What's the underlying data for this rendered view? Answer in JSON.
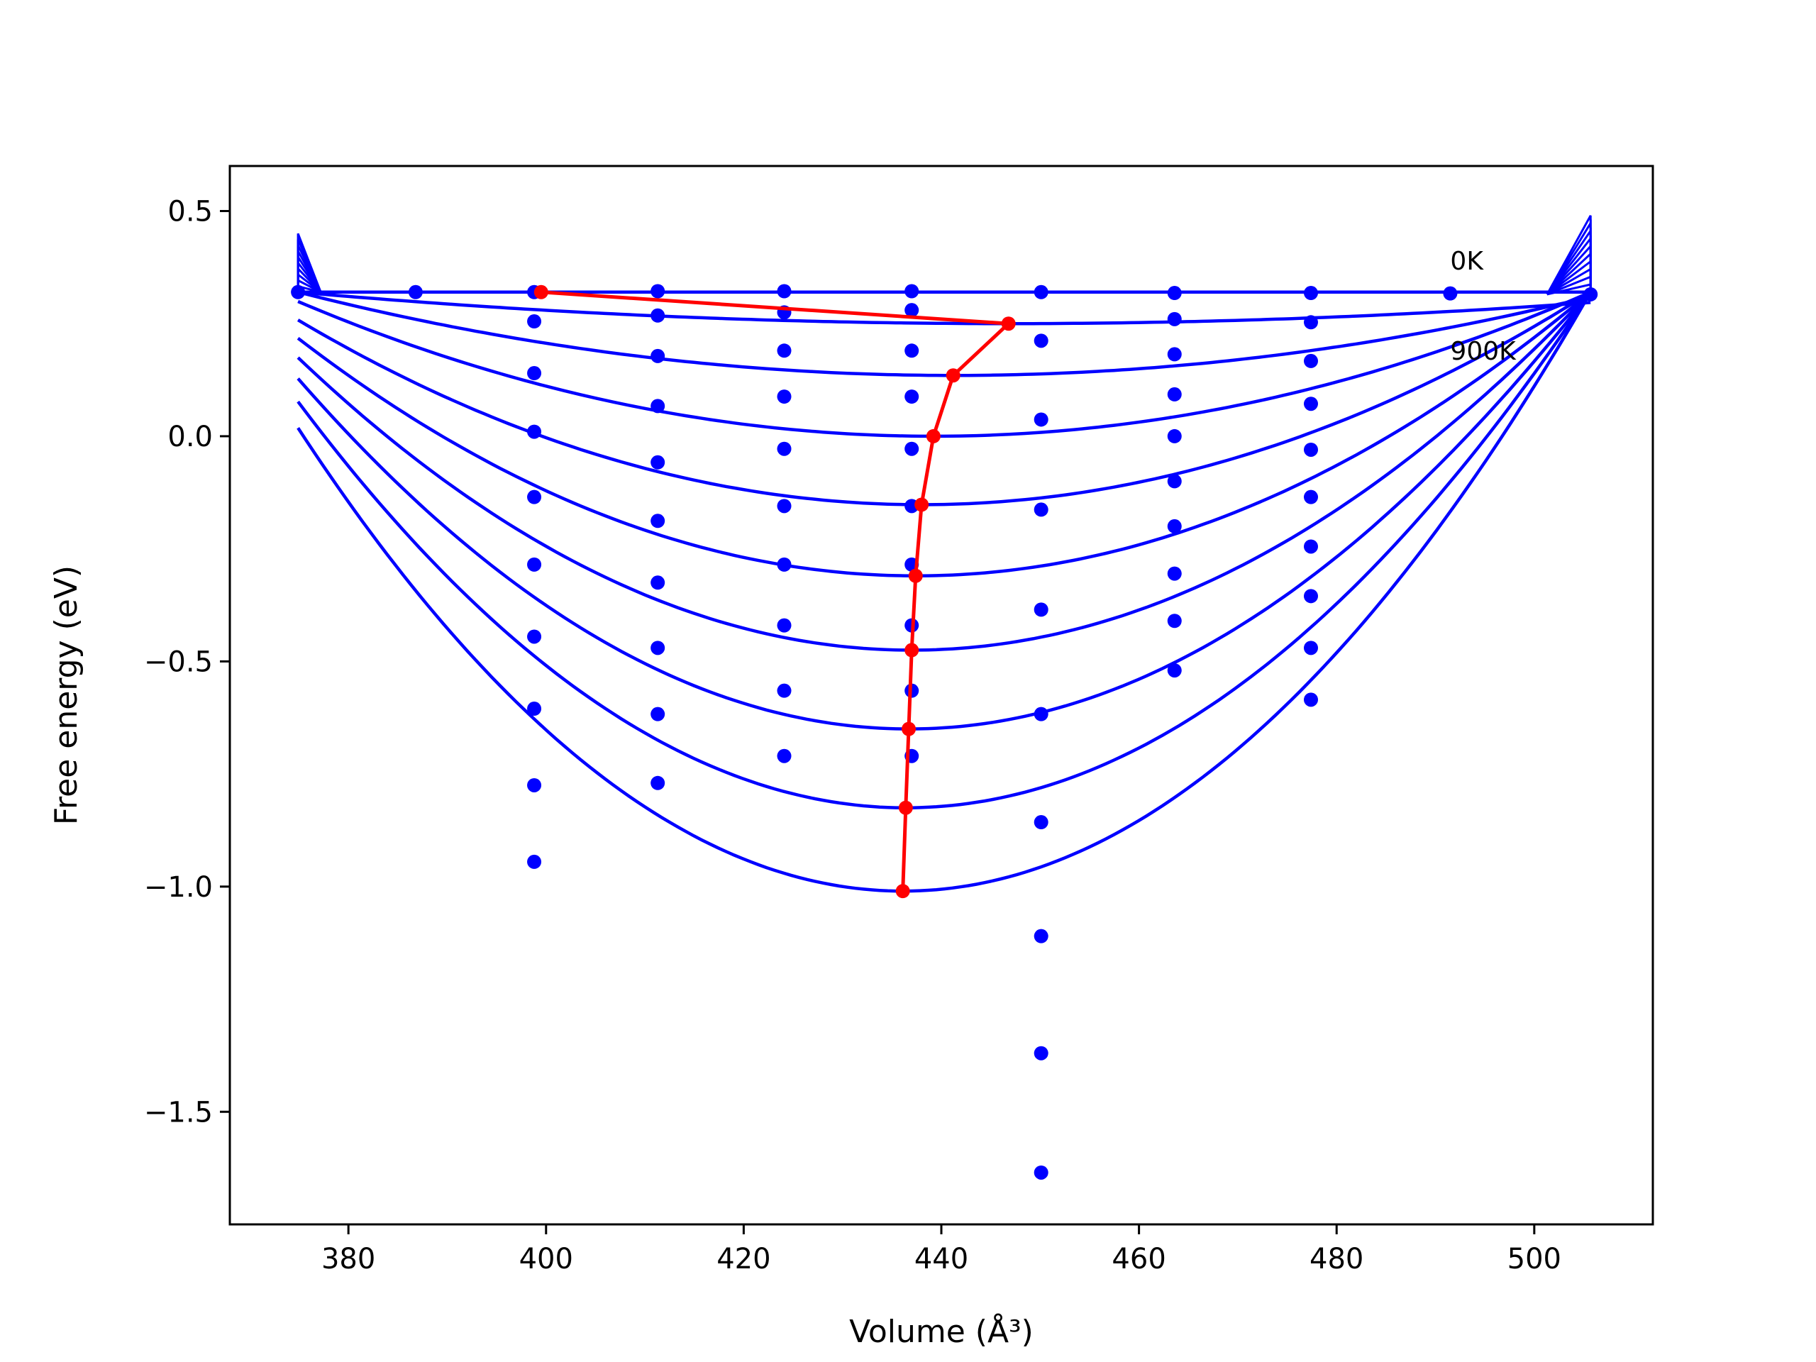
{
  "chart_data": {
    "type": "line",
    "xlabel": "Volume (Å³)",
    "ylabel": "Free energy (eV)",
    "xlim": [
      368,
      512
    ],
    "ylim": [
      -1.75,
      0.6
    ],
    "xticks": [
      380,
      400,
      420,
      440,
      460,
      480,
      500
    ],
    "yticks": [
      0.5,
      0.0,
      -0.5,
      -1.0,
      -1.5
    ],
    "xtick_labels": [
      "380",
      "400",
      "420",
      "440",
      "460",
      "480",
      "500"
    ],
    "ytick_labels": [
      "0.5",
      "0.0",
      "−0.5",
      "−1.0",
      "−1.5"
    ],
    "grid": false,
    "annotations": [
      {
        "text": "0K",
        "x": 491.5,
        "y": 0.37
      },
      {
        "text": "900K",
        "x": 491.5,
        "y": 0.17
      }
    ],
    "colors": {
      "fit_curves": "#0000ff",
      "points": "#0000ff",
      "minimum_path": "#ff0000"
    },
    "fit_x_range": [
      374.9,
      505.7
    ],
    "fit_curves": [
      {
        "v0": 399.5,
        "e0": 0.32,
        "e_edge": 0.32
      },
      {
        "v0": 446.8,
        "e0": 0.25,
        "e_edge": 0.32
      },
      {
        "v0": 441.2,
        "e0": 0.135,
        "e_edge": 0.32
      },
      {
        "v0": 439.2,
        "e0": 0.0,
        "e_edge": 0.32
      },
      {
        "v0": 438.0,
        "e0": -0.152,
        "e_edge": 0.32
      },
      {
        "v0": 437.4,
        "e0": -0.31,
        "e_edge": 0.32
      },
      {
        "v0": 437.0,
        "e0": -0.475,
        "e_edge": 0.32
      },
      {
        "v0": 436.7,
        "e0": -0.65,
        "e_edge": 0.32
      },
      {
        "v0": 436.4,
        "e0": -0.825,
        "e_edge": 0.32
      },
      {
        "v0": 436.1,
        "e0": -1.01,
        "e_edge": 0.32
      }
    ],
    "scatter_points": [
      {
        "x": 374.9,
        "y": 0.32
      },
      {
        "x": 386.8,
        "y": 0.32
      },
      {
        "x": 491.5,
        "y": 0.317
      },
      {
        "x": 505.7,
        "y": 0.315
      },
      {
        "x": 398.8,
        "y": 0.32
      },
      {
        "x": 398.8,
        "y": 0.255
      },
      {
        "x": 398.8,
        "y": 0.14
      },
      {
        "x": 398.8,
        "y": 0.01
      },
      {
        "x": 398.8,
        "y": -0.135
      },
      {
        "x": 398.8,
        "y": -0.285
      },
      {
        "x": 398.8,
        "y": -0.445
      },
      {
        "x": 398.8,
        "y": -0.605
      },
      {
        "x": 398.8,
        "y": -0.775
      },
      {
        "x": 398.8,
        "y": -0.945
      },
      {
        "x": 411.3,
        "y": 0.322
      },
      {
        "x": 411.3,
        "y": 0.268
      },
      {
        "x": 411.3,
        "y": 0.178
      },
      {
        "x": 411.3,
        "y": 0.067
      },
      {
        "x": 411.3,
        "y": -0.058
      },
      {
        "x": 411.3,
        "y": -0.188
      },
      {
        "x": 411.3,
        "y": -0.325
      },
      {
        "x": 411.3,
        "y": -0.47
      },
      {
        "x": 411.3,
        "y": -0.617
      },
      {
        "x": 411.3,
        "y": -0.77
      },
      {
        "x": 424.1,
        "y": 0.322
      },
      {
        "x": 424.1,
        "y": 0.275
      },
      {
        "x": 424.1,
        "y": 0.19
      },
      {
        "x": 424.1,
        "y": 0.088
      },
      {
        "x": 424.1,
        "y": -0.028
      },
      {
        "x": 424.1,
        "y": -0.155
      },
      {
        "x": 424.1,
        "y": -0.285
      },
      {
        "x": 424.1,
        "y": -0.42
      },
      {
        "x": 424.1,
        "y": -0.565
      },
      {
        "x": 424.1,
        "y": -0.71
      },
      {
        "x": 437.0,
        "y": 0.322
      },
      {
        "x": 437.0,
        "y": 0.28
      },
      {
        "x": 437.0,
        "y": 0.19
      },
      {
        "x": 437.0,
        "y": 0.088
      },
      {
        "x": 437.0,
        "y": -0.028
      },
      {
        "x": 437.0,
        "y": -0.155
      },
      {
        "x": 437.0,
        "y": -0.285
      },
      {
        "x": 437.0,
        "y": -0.42
      },
      {
        "x": 437.0,
        "y": -0.565
      },
      {
        "x": 437.0,
        "y": -0.71
      },
      {
        "x": 450.1,
        "y": 0.32
      },
      {
        "x": 450.1,
        "y": 0.212
      },
      {
        "x": 450.1,
        "y": 0.037
      },
      {
        "x": 450.1,
        "y": -0.163
      },
      {
        "x": 450.1,
        "y": -0.385
      },
      {
        "x": 450.1,
        "y": -0.617
      },
      {
        "x": 450.1,
        "y": -0.857
      },
      {
        "x": 450.1,
        "y": -1.11
      },
      {
        "x": 450.1,
        "y": -1.37
      },
      {
        "x": 450.1,
        "y": -1.635
      },
      {
        "x": 463.6,
        "y": 0.318
      },
      {
        "x": 463.6,
        "y": 0.26
      },
      {
        "x": 463.6,
        "y": 0.182
      },
      {
        "x": 463.6,
        "y": 0.093
      },
      {
        "x": 463.6,
        "y": 0.0
      },
      {
        "x": 463.6,
        "y": -0.1
      },
      {
        "x": 463.6,
        "y": -0.2
      },
      {
        "x": 463.6,
        "y": -0.305
      },
      {
        "x": 463.6,
        "y": -0.41
      },
      {
        "x": 463.6,
        "y": -0.52
      },
      {
        "x": 477.4,
        "y": 0.318
      },
      {
        "x": 477.4,
        "y": 0.253
      },
      {
        "x": 477.4,
        "y": 0.167
      },
      {
        "x": 477.4,
        "y": 0.072
      },
      {
        "x": 477.4,
        "y": -0.03
      },
      {
        "x": 477.4,
        "y": -0.135
      },
      {
        "x": 477.4,
        "y": -0.245
      },
      {
        "x": 477.4,
        "y": -0.355
      },
      {
        "x": 477.4,
        "y": -0.47
      },
      {
        "x": 477.4,
        "y": -0.585
      }
    ],
    "minimum_path": [
      {
        "x": 399.5,
        "y": 0.32
      },
      {
        "x": 446.8,
        "y": 0.25
      },
      {
        "x": 441.2,
        "y": 0.135
      },
      {
        "x": 439.2,
        "y": 0.0
      },
      {
        "x": 438.0,
        "y": -0.152
      },
      {
        "x": 437.4,
        "y": -0.31
      },
      {
        "x": 437.0,
        "y": -0.475
      },
      {
        "x": 436.7,
        "y": -0.65
      },
      {
        "x": 436.4,
        "y": -0.825
      },
      {
        "x": 436.1,
        "y": -1.01
      }
    ]
  }
}
